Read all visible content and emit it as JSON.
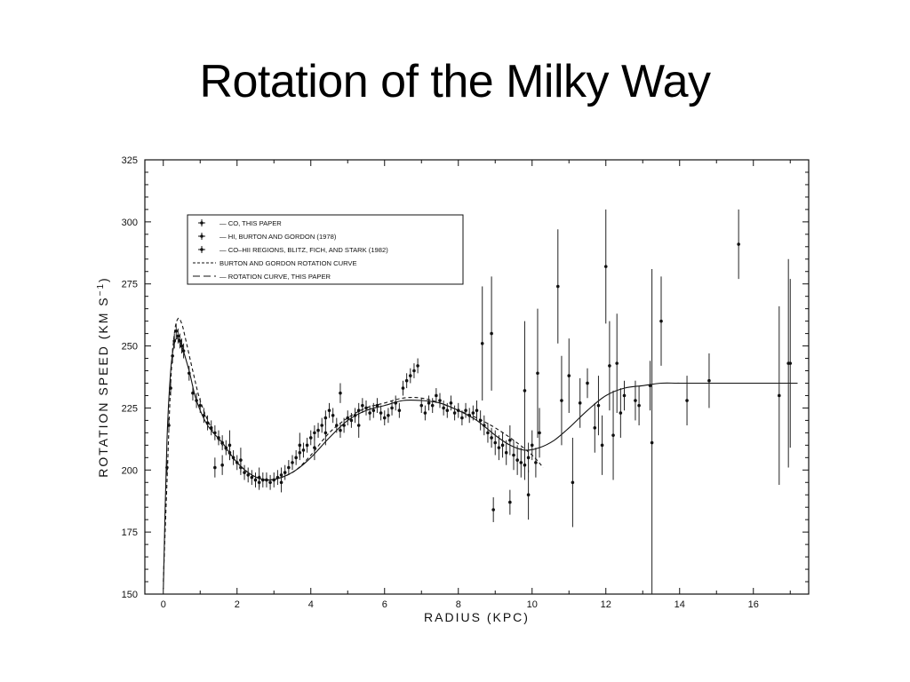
{
  "slide": {
    "title": "Rotation of the Milky Way"
  },
  "chart_data": {
    "type": "scatter",
    "xlabel": "RADIUS (KPC)",
    "ylabel": "ROTATION SPEED (KM S⁻¹)",
    "ylabel_parts": [
      "ROTATION SPEED (KM S",
      "−1",
      ")"
    ],
    "xlim": [
      -0.5,
      17.5
    ],
    "ylim": [
      150,
      325
    ],
    "xticks": [
      0,
      2,
      4,
      6,
      8,
      10,
      12,
      14,
      16
    ],
    "yticks": [
      150,
      175,
      200,
      225,
      250,
      275,
      300,
      325
    ],
    "grid": false,
    "legend_position": "top-left",
    "legend": [
      {
        "label": "— CO, THIS PAPER",
        "symbol": "errorbar"
      },
      {
        "label": "— HI, BURTON AND GORDON (1978)",
        "symbol": "errorbar"
      },
      {
        "label": "— CO–HII REGIONS, BLITZ, FICH, AND STARK (1982)",
        "symbol": "errorbar"
      },
      {
        "label": "BURTON AND GORDON ROTATION CURVE",
        "symbol": "dashed"
      },
      {
        "label": "— ROTATION CURVE, THIS PAPER",
        "symbol": "longdash"
      }
    ],
    "series": [
      {
        "style": "solid",
        "x": [
          0.0,
          0.1,
          0.2,
          0.3,
          0.4,
          0.5,
          0.7,
          0.9,
          1.2,
          1.6,
          2.0,
          2.4,
          2.8,
          3.2,
          3.6,
          4.0,
          4.5,
          5.0,
          5.5,
          6.0,
          6.5,
          7.0,
          7.5,
          8.0,
          8.5,
          9.0,
          9.4,
          9.8,
          10.2,
          10.6,
          11.0,
          11.5,
          12.0,
          12.5,
          13.0,
          13.5,
          14.0,
          15.0,
          16.0,
          17.2
        ],
        "y": [
          152,
          212,
          240,
          251,
          253,
          250,
          240,
          228,
          218,
          211,
          203,
          198,
          196,
          197,
          200,
          205,
          213,
          220,
          224,
          226,
          228,
          228,
          227,
          224,
          220,
          214,
          210,
          208,
          209,
          212,
          217,
          224,
          230,
          233,
          234,
          235,
          235,
          235,
          235,
          235
        ]
      },
      {
        "style": "dashed",
        "x": [
          0.0,
          0.1,
          0.2,
          0.3,
          0.4,
          0.5,
          0.6,
          0.8,
          1.0,
          1.3,
          1.6,
          2.0,
          2.4,
          2.8,
          3.2,
          3.6,
          4.0,
          4.5,
          5.0,
          5.5,
          6.0,
          6.5,
          7.0,
          7.5,
          8.0,
          8.5,
          9.0,
          9.5,
          10.0,
          10.3
        ],
        "y": [
          155,
          195,
          235,
          255,
          261,
          259,
          253,
          240,
          228,
          217,
          210,
          203,
          198,
          196,
          197,
          200,
          206,
          215,
          221,
          225,
          227,
          229,
          229,
          227,
          224,
          221,
          217,
          212,
          206,
          201
        ]
      }
    ],
    "points": [
      {
        "x": 0.1,
        "y": 201,
        "e": 3
      },
      {
        "x": 0.15,
        "y": 218,
        "e": 3
      },
      {
        "x": 0.2,
        "y": 233,
        "e": 3
      },
      {
        "x": 0.25,
        "y": 246,
        "e": 3
      },
      {
        "x": 0.3,
        "y": 252,
        "e": 3
      },
      {
        "x": 0.35,
        "y": 256,
        "e": 3
      },
      {
        "x": 0.4,
        "y": 254,
        "e": 3
      },
      {
        "x": 0.45,
        "y": 252,
        "e": 3
      },
      {
        "x": 0.5,
        "y": 250,
        "e": 3
      },
      {
        "x": 0.55,
        "y": 248,
        "e": 3
      },
      {
        "x": 0.7,
        "y": 239,
        "e": 3
      },
      {
        "x": 0.8,
        "y": 231,
        "e": 3
      },
      {
        "x": 0.9,
        "y": 228,
        "e": 3
      },
      {
        "x": 1.0,
        "y": 226,
        "e": 3
      },
      {
        "x": 1.1,
        "y": 222,
        "e": 3
      },
      {
        "x": 1.2,
        "y": 219,
        "e": 3
      },
      {
        "x": 1.3,
        "y": 217,
        "e": 3
      },
      {
        "x": 1.4,
        "y": 215,
        "e": 3
      },
      {
        "x": 1.5,
        "y": 213,
        "e": 3
      },
      {
        "x": 1.6,
        "y": 211,
        "e": 3
      },
      {
        "x": 1.7,
        "y": 209,
        "e": 3
      },
      {
        "x": 1.8,
        "y": 207,
        "e": 3
      },
      {
        "x": 1.9,
        "y": 205,
        "e": 3
      },
      {
        "x": 2.0,
        "y": 203,
        "e": 3
      },
      {
        "x": 2.1,
        "y": 201,
        "e": 3
      },
      {
        "x": 2.2,
        "y": 199,
        "e": 3
      },
      {
        "x": 2.3,
        "y": 198,
        "e": 3
      },
      {
        "x": 2.4,
        "y": 197,
        "e": 3
      },
      {
        "x": 2.5,
        "y": 196,
        "e": 3
      },
      {
        "x": 2.6,
        "y": 195,
        "e": 3
      },
      {
        "x": 2.7,
        "y": 196,
        "e": 3
      },
      {
        "x": 2.8,
        "y": 196,
        "e": 3
      },
      {
        "x": 2.9,
        "y": 195,
        "e": 3
      },
      {
        "x": 3.0,
        "y": 196,
        "e": 3
      },
      {
        "x": 3.1,
        "y": 197,
        "e": 3
      },
      {
        "x": 3.2,
        "y": 198,
        "e": 3
      },
      {
        "x": 3.3,
        "y": 199,
        "e": 3
      },
      {
        "x": 3.4,
        "y": 201,
        "e": 3
      },
      {
        "x": 3.5,
        "y": 203,
        "e": 3
      },
      {
        "x": 3.6,
        "y": 205,
        "e": 3
      },
      {
        "x": 3.7,
        "y": 207,
        "e": 3
      },
      {
        "x": 3.8,
        "y": 208,
        "e": 3
      },
      {
        "x": 3.9,
        "y": 210,
        "e": 3
      },
      {
        "x": 4.0,
        "y": 213,
        "e": 3
      },
      {
        "x": 4.1,
        "y": 215,
        "e": 3
      },
      {
        "x": 4.2,
        "y": 216,
        "e": 3
      },
      {
        "x": 4.3,
        "y": 218,
        "e": 3
      },
      {
        "x": 4.4,
        "y": 221,
        "e": 3
      },
      {
        "x": 4.5,
        "y": 224,
        "e": 3
      },
      {
        "x": 4.6,
        "y": 222,
        "e": 3
      },
      {
        "x": 4.7,
        "y": 218,
        "e": 3
      },
      {
        "x": 4.8,
        "y": 216,
        "e": 3
      },
      {
        "x": 4.9,
        "y": 218,
        "e": 3
      },
      {
        "x": 5.0,
        "y": 221,
        "e": 3
      },
      {
        "x": 5.1,
        "y": 220,
        "e": 3
      },
      {
        "x": 5.2,
        "y": 222,
        "e": 3
      },
      {
        "x": 5.3,
        "y": 224,
        "e": 3
      },
      {
        "x": 5.4,
        "y": 226,
        "e": 3
      },
      {
        "x": 5.5,
        "y": 225,
        "e": 3
      },
      {
        "x": 5.6,
        "y": 223,
        "e": 3
      },
      {
        "x": 5.7,
        "y": 224,
        "e": 3
      },
      {
        "x": 5.8,
        "y": 226,
        "e": 3
      },
      {
        "x": 5.9,
        "y": 223,
        "e": 3
      },
      {
        "x": 6.0,
        "y": 221,
        "e": 3
      },
      {
        "x": 6.1,
        "y": 222,
        "e": 3
      },
      {
        "x": 6.2,
        "y": 225,
        "e": 3
      },
      {
        "x": 6.3,
        "y": 227,
        "e": 3
      },
      {
        "x": 6.4,
        "y": 224,
        "e": 3
      },
      {
        "x": 6.5,
        "y": 233,
        "e": 3
      },
      {
        "x": 6.6,
        "y": 236,
        "e": 3
      },
      {
        "x": 6.7,
        "y": 238,
        "e": 3
      },
      {
        "x": 6.8,
        "y": 240,
        "e": 3
      },
      {
        "x": 6.9,
        "y": 242,
        "e": 3
      },
      {
        "x": 7.0,
        "y": 226,
        "e": 3
      },
      {
        "x": 7.1,
        "y": 223,
        "e": 3
      },
      {
        "x": 7.2,
        "y": 227,
        "e": 3
      },
      {
        "x": 7.3,
        "y": 226,
        "e": 3
      },
      {
        "x": 7.4,
        "y": 230,
        "e": 3
      },
      {
        "x": 7.5,
        "y": 228,
        "e": 3
      },
      {
        "x": 7.6,
        "y": 225,
        "e": 3
      },
      {
        "x": 7.7,
        "y": 224,
        "e": 3
      },
      {
        "x": 7.8,
        "y": 227,
        "e": 3
      },
      {
        "x": 7.9,
        "y": 223,
        "e": 3
      },
      {
        "x": 8.0,
        "y": 224,
        "e": 3
      },
      {
        "x": 8.1,
        "y": 221,
        "e": 3
      },
      {
        "x": 8.2,
        "y": 224,
        "e": 3
      },
      {
        "x": 8.3,
        "y": 222,
        "e": 3
      },
      {
        "x": 8.4,
        "y": 223,
        "e": 3
      },
      {
        "x": 8.5,
        "y": 224,
        "e": 4
      },
      {
        "x": 8.6,
        "y": 220,
        "e": 4
      },
      {
        "x": 8.7,
        "y": 218,
        "e": 4
      },
      {
        "x": 8.8,
        "y": 215,
        "e": 4
      },
      {
        "x": 8.9,
        "y": 213,
        "e": 4
      },
      {
        "x": 9.0,
        "y": 211,
        "e": 5
      },
      {
        "x": 9.1,
        "y": 209,
        "e": 5
      },
      {
        "x": 9.2,
        "y": 210,
        "e": 5
      },
      {
        "x": 9.3,
        "y": 207,
        "e": 5
      },
      {
        "x": 9.4,
        "y": 212,
        "e": 6
      },
      {
        "x": 9.5,
        "y": 206,
        "e": 6
      },
      {
        "x": 9.6,
        "y": 204,
        "e": 6
      },
      {
        "x": 9.7,
        "y": 203,
        "e": 6
      },
      {
        "x": 9.8,
        "y": 202,
        "e": 6
      },
      {
        "x": 9.9,
        "y": 205,
        "e": 6
      },
      {
        "x": 10.0,
        "y": 210,
        "e": 6
      },
      {
        "x": 10.1,
        "y": 203,
        "e": 6
      },
      {
        "x": 2.1,
        "y": 204,
        "e": 5
      },
      {
        "x": 2.6,
        "y": 197,
        "e": 4
      },
      {
        "x": 3.2,
        "y": 195,
        "e": 4
      },
      {
        "x": 3.7,
        "y": 210,
        "e": 5
      },
      {
        "x": 4.1,
        "y": 209,
        "e": 5
      },
      {
        "x": 4.4,
        "y": 215,
        "e": 5
      },
      {
        "x": 4.8,
        "y": 231,
        "e": 4
      },
      {
        "x": 5.3,
        "y": 218,
        "e": 5
      },
      {
        "x": 1.4,
        "y": 201,
        "e": 4
      },
      {
        "x": 1.6,
        "y": 202,
        "e": 4
      },
      {
        "x": 1.8,
        "y": 210,
        "e": 6
      },
      {
        "x": 8.65,
        "y": 251,
        "e": 23
      },
      {
        "x": 8.9,
        "y": 255,
        "e": 23
      },
      {
        "x": 8.95,
        "y": 184,
        "e": 5
      },
      {
        "x": 9.4,
        "y": 187,
        "e": 5
      },
      {
        "x": 9.8,
        "y": 232,
        "e": 28
      },
      {
        "x": 9.9,
        "y": 190,
        "e": 10
      },
      {
        "x": 10.15,
        "y": 239,
        "e": 26
      },
      {
        "x": 10.2,
        "y": 215,
        "e": 10
      },
      {
        "x": 10.7,
        "y": 274,
        "e": 23
      },
      {
        "x": 10.8,
        "y": 228,
        "e": 18
      },
      {
        "x": 11.0,
        "y": 238,
        "e": 15
      },
      {
        "x": 11.1,
        "y": 195,
        "e": 18
      },
      {
        "x": 11.3,
        "y": 227,
        "e": 10
      },
      {
        "x": 11.5,
        "y": 235,
        "e": 6
      },
      {
        "x": 11.7,
        "y": 217,
        "e": 10
      },
      {
        "x": 11.8,
        "y": 226,
        "e": 12
      },
      {
        "x": 11.9,
        "y": 210,
        "e": 12
      },
      {
        "x": 12.0,
        "y": 282,
        "e": 23
      },
      {
        "x": 12.1,
        "y": 242,
        "e": 18
      },
      {
        "x": 12.2,
        "y": 214,
        "e": 18
      },
      {
        "x": 12.3,
        "y": 243,
        "e": 20
      },
      {
        "x": 12.4,
        "y": 223,
        "e": 10
      },
      {
        "x": 12.5,
        "y": 230,
        "e": 6
      },
      {
        "x": 12.8,
        "y": 228,
        "e": 8
      },
      {
        "x": 12.9,
        "y": 226,
        "e": 8
      },
      {
        "x": 13.2,
        "y": 234,
        "e": 10
      },
      {
        "x": 13.25,
        "y": 211,
        "e": 70
      },
      {
        "x": 13.5,
        "y": 260,
        "e": 18
      },
      {
        "x": 14.2,
        "y": 228,
        "e": 10
      },
      {
        "x": 14.8,
        "y": 236,
        "e": 11
      },
      {
        "x": 15.6,
        "y": 291,
        "e": 14
      },
      {
        "x": 16.7,
        "y": 230,
        "e": 36
      },
      {
        "x": 16.95,
        "y": 243,
        "e": 42
      },
      {
        "x": 17.0,
        "y": 243,
        "e": 34
      }
    ]
  }
}
